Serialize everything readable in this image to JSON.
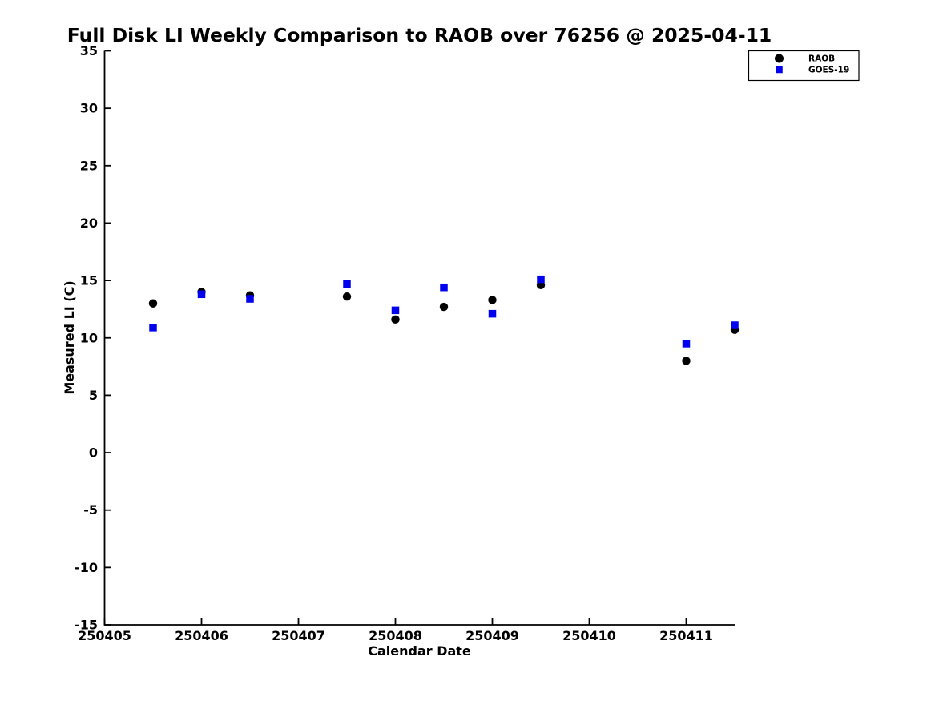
{
  "figure": {
    "background": "#ffffff",
    "text_color": "#000000"
  },
  "chart_data": {
    "type": "scatter",
    "title": "Full Disk LI Weekly Comparison to RAOB over 76256 @ 2025-04-11",
    "xlabel": "Calendar Date",
    "ylabel": "Measured LI (C)",
    "xlim": [
      250405,
      250411.5
    ],
    "ylim": [
      -15,
      35
    ],
    "x_ticks": [
      "250405",
      "250406",
      "250407",
      "250408",
      "250409",
      "250410",
      "250411"
    ],
    "y_ticks": [
      -15,
      -10,
      -5,
      0,
      5,
      10,
      15,
      20,
      25,
      30,
      35
    ],
    "grid": false,
    "legend_position": "top-right-outside",
    "legend": [
      {
        "label": "RAOB",
        "marker": "circle",
        "color": "#000000"
      },
      {
        "label": "GOES-19",
        "marker": "square",
        "color": "#0000ee"
      }
    ],
    "series": [
      {
        "name": "RAOB",
        "marker": "circle",
        "color": "#000000",
        "points": [
          [
            250405.5,
            13.0
          ],
          [
            250406.0,
            14.0
          ],
          [
            250406.5,
            13.7
          ],
          [
            250407.5,
            13.6
          ],
          [
            250408.0,
            11.6
          ],
          [
            250408.5,
            12.7
          ],
          [
            250409.0,
            13.3
          ],
          [
            250409.5,
            14.6
          ],
          [
            250411.0,
            8.0
          ],
          [
            250411.5,
            10.7
          ]
        ]
      },
      {
        "name": "GOES-19",
        "marker": "square",
        "color": "#0000ee",
        "points": [
          [
            250405.5,
            10.9
          ],
          [
            250406.0,
            13.8
          ],
          [
            250406.5,
            13.4
          ],
          [
            250407.5,
            14.7
          ],
          [
            250408.0,
            12.4
          ],
          [
            250408.5,
            14.4
          ],
          [
            250409.0,
            12.1
          ],
          [
            250409.5,
            15.1
          ],
          [
            250411.0,
            9.5
          ],
          [
            250411.5,
            11.1
          ]
        ]
      }
    ]
  }
}
